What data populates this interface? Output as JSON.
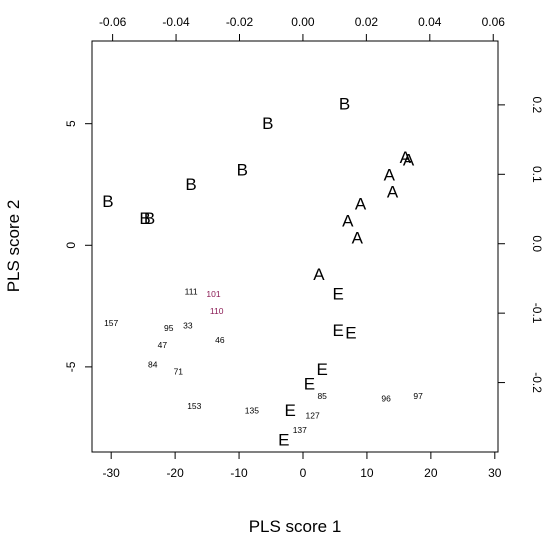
{
  "chart_data": {
    "type": "scatter",
    "title": "",
    "xlabel": "PLS score 1",
    "ylabel": "PLS score 2",
    "xlim": [
      -33,
      30.5
    ],
    "ylim": [
      -8.5,
      8.4
    ],
    "x_ticks": [
      -30,
      -20,
      -10,
      0,
      10,
      20,
      30
    ],
    "x_tick_labels": [
      "-30",
      "-20",
      "-10",
      "0",
      "10",
      "20",
      "30"
    ],
    "y_ticks": [
      -5,
      0,
      5
    ],
    "y_tick_labels": [
      "-5",
      "0",
      "5"
    ],
    "top_axis": {
      "lim": [
        -0.0665,
        0.0615
      ],
      "ticks": [
        -0.06,
        -0.04,
        -0.02,
        0.0,
        0.02,
        0.04,
        0.06
      ],
      "tick_labels": [
        "-0.06",
        "-0.04",
        "-0.02",
        "0.00",
        "0.02",
        "0.04",
        "0.06"
      ]
    },
    "right_axis": {
      "lim": [
        -0.3,
        0.292
      ],
      "ticks": [
        -0.2,
        -0.1,
        0.0,
        0.1,
        0.2
      ],
      "tick_labels": [
        "-0.2",
        "-0.1",
        "0.0",
        "0.1",
        "0.2"
      ]
    },
    "grid": false,
    "points": [
      {
        "label": "B",
        "x": 6.5,
        "y": 5.8
      },
      {
        "label": "B",
        "x": -5.5,
        "y": 5.0
      },
      {
        "label": "B",
        "x": -9.5,
        "y": 3.1
      },
      {
        "label": "B",
        "x": -17.5,
        "y": 2.5
      },
      {
        "label": "B",
        "x": -30.5,
        "y": 1.8
      },
      {
        "label": "B",
        "x": -24.7,
        "y": 1.1
      },
      {
        "label": "B",
        "x": -24.0,
        "y": 1.1
      },
      {
        "label": "A",
        "x": 16.0,
        "y": 3.6
      },
      {
        "label": "A",
        "x": 16.5,
        "y": 3.5
      },
      {
        "label": "A",
        "x": 13.5,
        "y": 2.9
      },
      {
        "label": "A",
        "x": 14.0,
        "y": 2.2
      },
      {
        "label": "A",
        "x": 9.0,
        "y": 1.7
      },
      {
        "label": "A",
        "x": 7.0,
        "y": 1.0
      },
      {
        "label": "A",
        "x": 8.5,
        "y": 0.3
      },
      {
        "label": "A",
        "x": 2.5,
        "y": -1.2
      },
      {
        "label": "E",
        "x": 5.5,
        "y": -2.0
      },
      {
        "label": "E",
        "x": 5.5,
        "y": -3.5
      },
      {
        "label": "E",
        "x": 7.5,
        "y": -3.6
      },
      {
        "label": "E",
        "x": 3.0,
        "y": -5.1
      },
      {
        "label": "E",
        "x": 1.0,
        "y": -5.7
      },
      {
        "label": "E",
        "x": -2.0,
        "y": -6.8
      },
      {
        "label": "E",
        "x": -3.0,
        "y": -8.0
      },
      {
        "label": "111",
        "x": -17.5,
        "y": -1.9
      },
      {
        "label": "101",
        "x": -14.0,
        "y": -2.0
      },
      {
        "label": "110",
        "x": -13.5,
        "y": -2.7
      },
      {
        "label": "157",
        "x": -30.0,
        "y": -3.2
      },
      {
        "label": "95",
        "x": -21.0,
        "y": -3.4
      },
      {
        "label": "33",
        "x": -18.0,
        "y": -3.3
      },
      {
        "label": "46",
        "x": -13.0,
        "y": -3.9
      },
      {
        "label": "47",
        "x": -22.0,
        "y": -4.1
      },
      {
        "label": "84",
        "x": -23.5,
        "y": -4.9
      },
      {
        "label": "71",
        "x": -19.5,
        "y": -5.2
      },
      {
        "label": "153",
        "x": -17.0,
        "y": -6.6
      },
      {
        "label": "135",
        "x": -8.0,
        "y": -6.8
      },
      {
        "label": "85",
        "x": 3.0,
        "y": -6.2
      },
      {
        "label": "127",
        "x": 1.5,
        "y": -7.0
      },
      {
        "label": "137",
        "x": -0.5,
        "y": -7.6
      },
      {
        "label": "96",
        "x": 13.0,
        "y": -6.3
      },
      {
        "label": "97",
        "x": 18.0,
        "y": -6.2
      }
    ],
    "magenta_labels": [
      "101",
      "110"
    ]
  }
}
